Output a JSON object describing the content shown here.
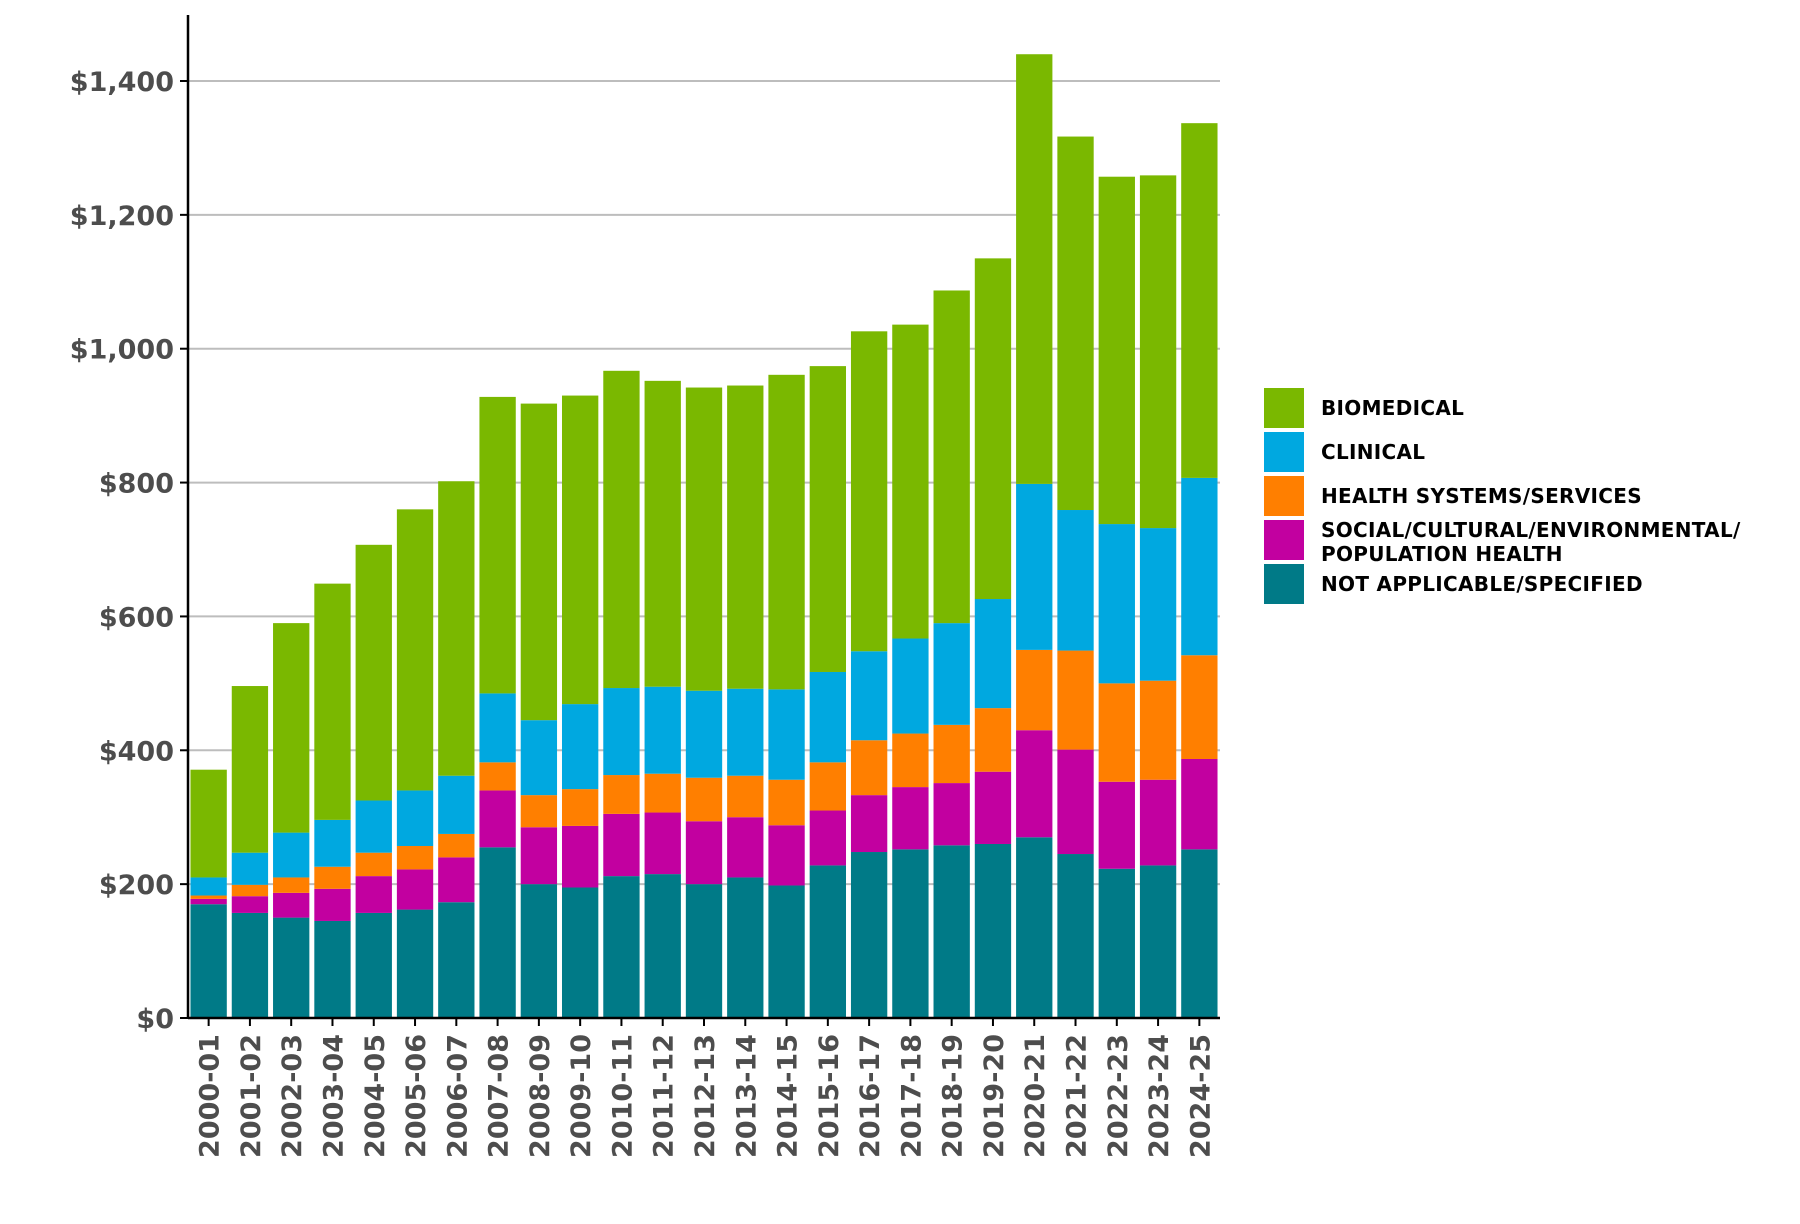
{
  "chart_data": {
    "type": "bar",
    "stacked": true,
    "title": "",
    "xlabel": "",
    "ylabel": "",
    "ylim": [
      0,
      1500
    ],
    "yticks": [
      0,
      200,
      400,
      600,
      800,
      1000,
      1200,
      1400
    ],
    "ytick_labels": [
      "$0",
      "$200",
      "$400",
      "$600",
      "$800",
      "$1,000",
      "$1,200",
      "$1,400"
    ],
    "grid": true,
    "legend_position": "right",
    "categories": [
      "2000-01",
      "2001-02",
      "2002-03",
      "2003-04",
      "2004-05",
      "2005-06",
      "2006-07",
      "2007-08",
      "2008-09",
      "2009-10",
      "2010-11",
      "2011-12",
      "2012-13",
      "2013-14",
      "2014-15",
      "2015-16",
      "2016-17",
      "2017-18",
      "2018-19",
      "2019-20",
      "2020-21",
      "2021-22",
      "2022-23",
      "2023-24",
      "2024-25"
    ],
    "series": [
      {
        "name": "NOT APPLICABLE/SPECIFIED",
        "color": "#007a87",
        "values": [
          170,
          157,
          150,
          145,
          157,
          162,
          173,
          255,
          200,
          195,
          212,
          215,
          200,
          210,
          198,
          228,
          248,
          252,
          258,
          260,
          270,
          245,
          223,
          228,
          252
        ]
      },
      {
        "name": "SOCIAL/CULTURAL/ENVIRONMENTAL/ POPULATION HEALTH",
        "color": "#c200a0",
        "values": [
          8,
          25,
          37,
          48,
          55,
          60,
          67,
          85,
          85,
          92,
          93,
          92,
          94,
          90,
          90,
          82,
          85,
          93,
          93,
          108,
          160,
          156,
          130,
          128,
          135
        ]
      },
      {
        "name": "HEALTH SYSTEMS/SERVICES",
        "color": "#ff7f00",
        "values": [
          5,
          17,
          23,
          33,
          35,
          35,
          35,
          42,
          48,
          55,
          58,
          58,
          65,
          62,
          68,
          72,
          82,
          80,
          87,
          95,
          120,
          148,
          147,
          148,
          155
        ]
      },
      {
        "name": "CLINICAL",
        "color": "#00a8e0",
        "values": [
          27,
          48,
          67,
          70,
          78,
          83,
          87,
          103,
          112,
          127,
          130,
          130,
          130,
          130,
          135,
          135,
          133,
          142,
          152,
          163,
          248,
          210,
          238,
          228,
          265
        ]
      },
      {
        "name": "BIOMEDICAL",
        "color": "#7ab800",
        "values": [
          161,
          249,
          313,
          353,
          382,
          420,
          440,
          443,
          473,
          461,
          474,
          457,
          453,
          453,
          470,
          457,
          478,
          469,
          497,
          509,
          642,
          558,
          519,
          527,
          530
        ]
      }
    ]
  },
  "legend": {
    "items": [
      {
        "lines": [
          "BIOMEDICAL"
        ],
        "color": "#7ab800"
      },
      {
        "lines": [
          "CLINICAL"
        ],
        "color": "#00a8e0"
      },
      {
        "lines": [
          "HEALTH SYSTEMS/SERVICES"
        ],
        "color": "#ff7f00"
      },
      {
        "lines": [
          "SOCIAL/CULTURAL/ENVIRONMENTAL/",
          "POPULATION HEALTH"
        ],
        "color": "#c200a0"
      },
      {
        "lines": [
          "NOT APPLICABLE/SPECIFIED"
        ],
        "color": "#007a87"
      }
    ]
  }
}
